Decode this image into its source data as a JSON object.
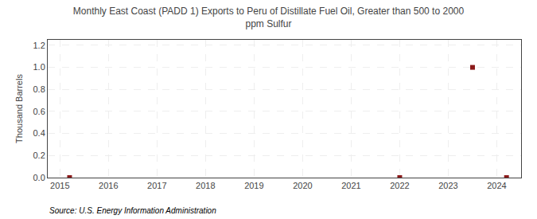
{
  "chart_data": {
    "type": "scatter",
    "title": "Monthly East Coast (PADD 1) Exports to Peru of Distillate Fuel Oil, Greater than 500 to 2000\nppm Sulfur",
    "ylabel": "Thousand Barrels",
    "annotations": [
      "Source: U.S. Energy Information Administration"
    ],
    "x": [
      2015.2,
      2022.0,
      2023.5,
      2024.2
    ],
    "values": [
      0.0,
      0.0,
      1.0,
      0.0
    ],
    "color": "#8b1a1a",
    "marker": "square",
    "xlim": [
      2014.75,
      2024.5
    ],
    "ylim": [
      0.0,
      1.25
    ],
    "xticks": [
      2015,
      2016,
      2017,
      2018,
      2019,
      2020,
      2021,
      2022,
      2023,
      2024
    ],
    "yticks": [
      {
        "value": 0,
        "label": "0.0"
      },
      0.2,
      0.4,
      0.6,
      0.8,
      {
        "value": 1,
        "label": "1.0"
      },
      1.2
    ],
    "grid": true
  }
}
